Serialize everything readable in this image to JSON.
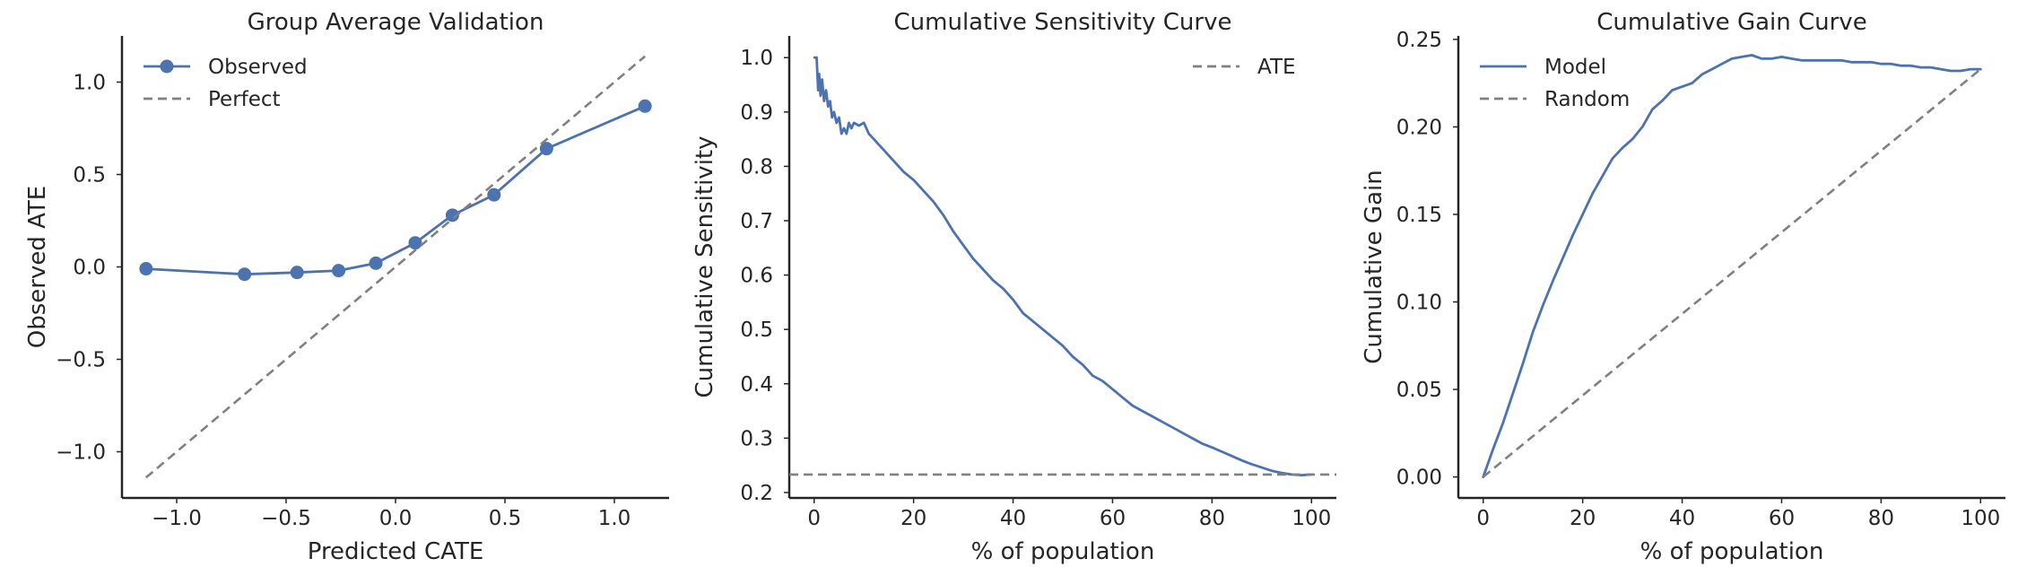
{
  "colors": {
    "series": "#4c72b0",
    "reference": "#808080",
    "text": "#262626"
  },
  "chart_data": [
    {
      "type": "line",
      "title": "Group Average Validation",
      "xlabel": "Predicted CATE",
      "ylabel": "Observed ATE",
      "xlim": [
        -1.25,
        1.25
      ],
      "ylim": [
        -1.25,
        1.25
      ],
      "xticks": [
        -1.0,
        -0.5,
        0.0,
        0.5,
        1.0
      ],
      "xticklabels": [
        "−1.0",
        "−0.5",
        "0.0",
        "0.5",
        "1.0"
      ],
      "yticks": [
        -1.0,
        -0.5,
        0.0,
        0.5,
        1.0
      ],
      "yticklabels": [
        "−1.0",
        "−0.5",
        "0.0",
        "0.5",
        "1.0"
      ],
      "legend_position": "top-left",
      "series": [
        {
          "name": "Observed",
          "style": "solid-markers",
          "color": "series",
          "x": [
            -1.14,
            -0.69,
            -0.45,
            -0.26,
            -0.09,
            0.09,
            0.26,
            0.45,
            0.69,
            1.14
          ],
          "y": [
            -0.01,
            -0.04,
            -0.03,
            -0.02,
            0.02,
            0.13,
            0.28,
            0.39,
            0.64,
            0.87
          ]
        },
        {
          "name": "Perfect",
          "style": "dashed",
          "color": "reference",
          "x": [
            -1.14,
            1.14
          ],
          "y": [
            -1.14,
            1.14
          ]
        }
      ]
    },
    {
      "type": "line",
      "title": "Cumulative Sensitivity Curve",
      "xlabel": "% of population",
      "ylabel": "Cumulative Sensitivity",
      "xlim": [
        -5,
        105
      ],
      "ylim": [
        0.19,
        1.04
      ],
      "xticks": [
        0,
        20,
        40,
        60,
        80,
        100
      ],
      "xticklabels": [
        "0",
        "20",
        "40",
        "60",
        "80",
        "100"
      ],
      "yticks": [
        0.2,
        0.3,
        0.4,
        0.5,
        0.6,
        0.7,
        0.8,
        0.9,
        1.0
      ],
      "yticklabels": [
        "0.2",
        "0.3",
        "0.4",
        "0.5",
        "0.6",
        "0.7",
        "0.8",
        "0.9",
        "1.0"
      ],
      "legend_position": "top-right",
      "series": [
        {
          "name": "Cumulative Sensitivity",
          "style": "solid",
          "color": "series",
          "in_legend": false,
          "x": [
            0.1,
            0.5,
            0.8,
            1.0,
            1.3,
            1.6,
            2.0,
            2.4,
            2.8,
            3.2,
            3.6,
            4.0,
            4.5,
            5.0,
            5.5,
            6.0,
            6.5,
            7.0,
            7.5,
            8.0,
            9.0,
            10.0,
            11.0,
            12.0,
            13.0,
            14.0,
            15.0,
            16.0,
            18.0,
            20.0,
            22.0,
            24.0,
            26.0,
            28.0,
            30.0,
            32.0,
            34.0,
            36.0,
            38.0,
            40.0,
            42.0,
            44.0,
            46.0,
            48.0,
            50.0,
            52.0,
            54.0,
            56.0,
            58.0,
            60.0,
            62.0,
            64.0,
            66.0,
            68.0,
            70.0,
            72.0,
            74.0,
            76.0,
            78.0,
            80.0,
            82.0,
            84.0,
            86.0,
            88.0,
            90.0,
            92.0,
            94.0,
            96.0,
            98.0,
            100.0
          ],
          "y": [
            1.0,
            1.0,
            0.94,
            0.97,
            0.93,
            0.96,
            0.92,
            0.94,
            0.91,
            0.92,
            0.89,
            0.9,
            0.88,
            0.89,
            0.86,
            0.87,
            0.86,
            0.88,
            0.87,
            0.88,
            0.875,
            0.88,
            0.86,
            0.85,
            0.84,
            0.83,
            0.82,
            0.81,
            0.79,
            0.775,
            0.755,
            0.735,
            0.71,
            0.68,
            0.655,
            0.63,
            0.61,
            0.59,
            0.575,
            0.555,
            0.53,
            0.515,
            0.5,
            0.485,
            0.47,
            0.45,
            0.435,
            0.415,
            0.405,
            0.39,
            0.375,
            0.36,
            0.35,
            0.34,
            0.33,
            0.32,
            0.31,
            0.3,
            0.29,
            0.283,
            0.275,
            0.267,
            0.259,
            0.252,
            0.246,
            0.24,
            0.236,
            0.233,
            0.232,
            0.233
          ]
        },
        {
          "name": "ATE",
          "style": "dashed",
          "color": "reference",
          "x": [
            -5,
            105
          ],
          "y": [
            0.233,
            0.233
          ]
        }
      ]
    },
    {
      "type": "line",
      "title": "Cumulative Gain Curve",
      "xlabel": "% of population",
      "ylabel": "Cumulative Gain",
      "xlim": [
        -5,
        105
      ],
      "ylim": [
        -0.012,
        0.252
      ],
      "xticks": [
        0,
        20,
        40,
        60,
        80,
        100
      ],
      "xticklabels": [
        "0",
        "20",
        "40",
        "60",
        "80",
        "100"
      ],
      "yticks": [
        0.0,
        0.05,
        0.1,
        0.15,
        0.2,
        0.25
      ],
      "yticklabels": [
        "0.00",
        "0.05",
        "0.10",
        "0.15",
        "0.20",
        "0.25"
      ],
      "legend_position": "top-left",
      "series": [
        {
          "name": "Model",
          "style": "solid",
          "color": "series",
          "x": [
            0,
            2,
            4,
            6,
            8,
            10,
            12,
            14,
            16,
            18,
            20,
            22,
            24,
            26,
            28,
            30,
            32,
            34,
            36,
            38,
            40,
            42,
            44,
            46,
            48,
            50,
            52,
            54,
            56,
            58,
            60,
            62,
            64,
            66,
            68,
            70,
            72,
            74,
            76,
            78,
            80,
            82,
            84,
            86,
            88,
            90,
            92,
            94,
            96,
            98,
            100
          ],
          "y": [
            0.0,
            0.016,
            0.031,
            0.048,
            0.065,
            0.083,
            0.098,
            0.112,
            0.125,
            0.138,
            0.15,
            0.162,
            0.172,
            0.182,
            0.188,
            0.193,
            0.2,
            0.21,
            0.215,
            0.221,
            0.223,
            0.225,
            0.23,
            0.233,
            0.236,
            0.239,
            0.24,
            0.241,
            0.239,
            0.239,
            0.24,
            0.239,
            0.238,
            0.238,
            0.238,
            0.238,
            0.238,
            0.237,
            0.237,
            0.237,
            0.236,
            0.236,
            0.235,
            0.235,
            0.234,
            0.234,
            0.233,
            0.232,
            0.232,
            0.233,
            0.233
          ]
        },
        {
          "name": "Random",
          "style": "dashed",
          "color": "reference",
          "x": [
            0,
            100
          ],
          "y": [
            0.0,
            0.233
          ]
        }
      ]
    }
  ]
}
